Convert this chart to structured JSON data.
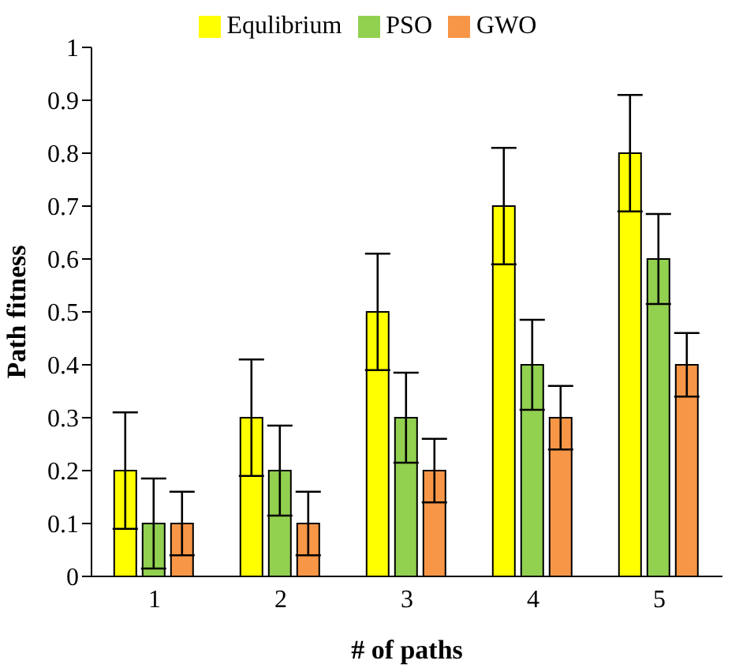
{
  "chart_data": {
    "type": "bar",
    "xlabel": "# of paths",
    "ylabel": "Path fitness",
    "categories": [
      "1",
      "2",
      "3",
      "4",
      "5"
    ],
    "series": [
      {
        "name": "Equlibrium",
        "color": "#ffff00",
        "values": [
          0.2,
          0.3,
          0.5,
          0.7,
          0.8
        ],
        "errors": [
          0.11,
          0.11,
          0.11,
          0.11,
          0.11
        ]
      },
      {
        "name": "PSO",
        "color": "#92d050",
        "values": [
          0.1,
          0.2,
          0.3,
          0.4,
          0.6
        ],
        "errors": [
          0.085,
          0.085,
          0.085,
          0.085,
          0.085
        ]
      },
      {
        "name": "GWO",
        "color": "#f79646",
        "values": [
          0.1,
          0.1,
          0.2,
          0.3,
          0.4
        ],
        "errors": [
          0.06,
          0.06,
          0.06,
          0.06,
          0.06
        ]
      }
    ],
    "ylim": [
      0,
      1
    ],
    "yticks": [
      0,
      0.1,
      0.2,
      0.3,
      0.4,
      0.5,
      0.6,
      0.7,
      0.8,
      0.9,
      1
    ],
    "grid": false,
    "legend": "top"
  }
}
